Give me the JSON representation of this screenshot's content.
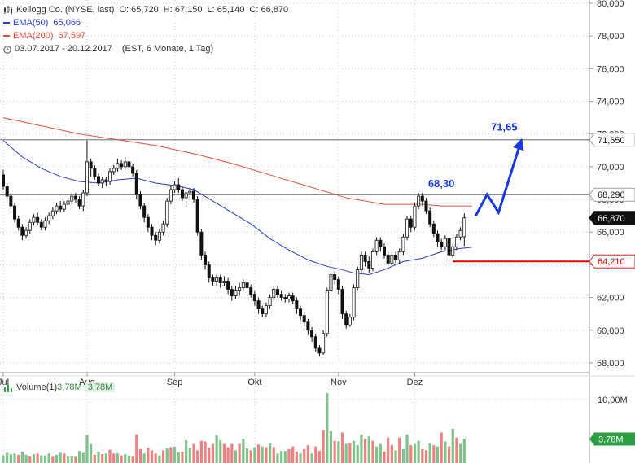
{
  "header": {
    "title": "Kellogg Co. (NYSE, last)",
    "quote": {
      "o_label": "O:",
      "o": "65,720",
      "h_label": "H:",
      "h": "67,150",
      "l_label": "L:",
      "l": "65,140",
      "c_label": "C:",
      "c": "66,870"
    },
    "ema50": {
      "label": "EMA(50)",
      "value": "65,066",
      "color": "#2a3fd1"
    },
    "ema200": {
      "label": "EMA(200)",
      "value": "67,597",
      "color": "#e8503a"
    },
    "range": "03.07.2017 - 20.12.2017",
    "range_info": "(EST, 6 Monate, 1 Tag)"
  },
  "volume_legend": {
    "label": "Volume(1)",
    "value": "3,78M",
    "badge": "3,78M"
  },
  "chart_data": {
    "type": "candlestick",
    "ylim": [
      57.4,
      80.2
    ],
    "y_ticks": [
      "80,000",
      "78,000",
      "76,000",
      "74,000",
      "72,000",
      "70,000",
      "68,000",
      "66,000",
      "64,000",
      "62,000",
      "60,000",
      "58,000"
    ],
    "y_tick_values": [
      80,
      78,
      76,
      74,
      72,
      70,
      68,
      66,
      64,
      62,
      60,
      58
    ],
    "x_labels": [
      "Jul",
      "Aug",
      "Sep",
      "Okt",
      "Nov",
      "Dez"
    ],
    "x_label_index": [
      0,
      22,
      45,
      66,
      88,
      108
    ],
    "num_days": 124,
    "candles": [
      [
        69.5,
        68.8,
        69.8,
        68.6
      ],
      [
        68.8,
        68.2,
        69.0,
        68.0
      ],
      [
        68.2,
        67.6,
        68.4,
        67.4
      ],
      [
        67.6,
        66.8,
        67.8,
        66.6
      ],
      [
        66.8,
        66.3,
        67.0,
        66.1
      ],
      [
        66.3,
        65.8,
        66.5,
        65.5
      ],
      [
        65.8,
        66.1,
        66.3,
        65.6
      ],
      [
        66.1,
        66.6,
        66.8,
        65.9
      ],
      [
        66.6,
        66.9,
        67.1,
        66.4
      ],
      [
        66.9,
        66.6,
        67.2,
        66.4
      ],
      [
        66.6,
        66.3,
        66.8,
        66.1
      ],
      [
        66.3,
        66.7,
        66.9,
        66.1
      ],
      [
        66.7,
        67.0,
        67.2,
        66.5
      ],
      [
        67.0,
        67.3,
        67.5,
        66.8
      ],
      [
        67.3,
        67.6,
        67.8,
        67.1
      ],
      [
        67.6,
        67.4,
        67.9,
        67.2
      ],
      [
        67.4,
        67.7,
        67.9,
        67.2
      ],
      [
        67.7,
        67.9,
        68.1,
        67.5
      ],
      [
        67.9,
        68.2,
        68.4,
        67.7
      ],
      [
        68.2,
        68.0,
        68.4,
        67.8
      ],
      [
        68.0,
        67.6,
        68.2,
        67.4
      ],
      [
        67.6,
        68.4,
        68.6,
        67.3
      ],
      [
        68.4,
        70.3,
        71.6,
        68.2
      ],
      [
        70.3,
        69.9,
        70.5,
        69.4
      ],
      [
        69.9,
        69.4,
        70.1,
        69.2
      ],
      [
        69.4,
        69.0,
        69.6,
        68.8
      ],
      [
        69.0,
        69.2,
        69.4,
        68.7
      ],
      [
        69.2,
        69.1,
        69.4,
        68.8
      ],
      [
        69.1,
        69.7,
        69.9,
        68.9
      ],
      [
        69.7,
        69.9,
        70.1,
        69.5
      ],
      [
        69.9,
        70.2,
        70.5,
        69.7
      ],
      [
        70.2,
        70.0,
        70.4,
        69.8
      ],
      [
        70.0,
        70.3,
        70.6,
        69.8
      ],
      [
        70.3,
        70.0,
        70.5,
        69.8
      ],
      [
        70.0,
        69.6,
        70.2,
        69.4
      ],
      [
        69.6,
        68.3,
        69.8,
        68.0
      ],
      [
        68.3,
        67.6,
        68.5,
        67.4
      ],
      [
        67.6,
        66.9,
        67.8,
        66.6
      ],
      [
        66.9,
        66.3,
        67.1,
        66.0
      ],
      [
        66.3,
        65.8,
        66.5,
        65.5
      ],
      [
        65.8,
        65.5,
        66.0,
        65.2
      ],
      [
        65.5,
        66.0,
        66.2,
        65.3
      ],
      [
        66.0,
        66.5,
        66.7,
        65.8
      ],
      [
        66.5,
        67.9,
        68.1,
        66.3
      ],
      [
        67.9,
        68.6,
        68.8,
        67.7
      ],
      [
        68.6,
        68.9,
        69.1,
        68.4
      ],
      [
        68.9,
        68.6,
        69.3,
        68.4
      ],
      [
        68.6,
        68.1,
        68.8,
        67.9
      ],
      [
        68.1,
        68.4,
        68.6,
        67.5
      ],
      [
        68.4,
        68.5,
        68.7,
        68.1
      ],
      [
        68.5,
        68.0,
        68.7,
        67.8
      ],
      [
        68.0,
        66.0,
        68.2,
        65.8
      ],
      [
        66.0,
        64.6,
        66.2,
        64.3
      ],
      [
        64.6,
        64.0,
        64.8,
        63.7
      ],
      [
        64.0,
        63.2,
        64.2,
        62.9
      ],
      [
        63.2,
        63.0,
        63.4,
        62.7
      ],
      [
        63.0,
        63.2,
        63.4,
        62.7
      ],
      [
        63.2,
        62.9,
        63.4,
        62.6
      ],
      [
        62.9,
        63.0,
        63.3,
        62.7
      ],
      [
        63.0,
        62.5,
        63.2,
        62.2
      ],
      [
        62.5,
        62.1,
        62.7,
        61.8
      ],
      [
        62.1,
        62.4,
        62.7,
        61.9
      ],
      [
        62.4,
        62.6,
        62.9,
        62.1
      ],
      [
        62.6,
        62.9,
        63.1,
        62.4
      ],
      [
        62.9,
        62.6,
        63.1,
        62.3
      ],
      [
        62.6,
        62.2,
        62.8,
        62.0
      ],
      [
        62.2,
        61.8,
        62.4,
        61.5
      ],
      [
        61.8,
        61.3,
        62.0,
        61.0
      ],
      [
        61.3,
        61.0,
        61.5,
        60.8
      ],
      [
        61.0,
        61.5,
        61.7,
        60.8
      ],
      [
        61.5,
        62.0,
        62.2,
        61.3
      ],
      [
        62.0,
        62.5,
        62.7,
        61.8
      ],
      [
        62.5,
        62.2,
        62.7,
        62.0
      ],
      [
        62.2,
        62.0,
        62.4,
        61.8
      ],
      [
        62.0,
        61.9,
        62.2,
        61.7
      ],
      [
        61.9,
        62.1,
        62.3,
        61.7
      ],
      [
        62.1,
        61.8,
        62.3,
        61.6
      ],
      [
        61.8,
        61.3,
        62.0,
        61.0
      ],
      [
        61.3,
        60.9,
        61.5,
        60.6
      ],
      [
        60.9,
        60.5,
        61.1,
        60.2
      ],
      [
        60.5,
        60.0,
        60.7,
        59.7
      ],
      [
        60.0,
        59.6,
        60.2,
        59.3
      ],
      [
        59.6,
        58.9,
        59.8,
        58.7
      ],
      [
        58.9,
        58.6,
        59.1,
        58.4
      ],
      [
        58.6,
        59.8,
        60.0,
        58.5
      ],
      [
        59.8,
        62.4,
        62.6,
        59.6
      ],
      [
        62.4,
        63.4,
        63.6,
        62.1
      ],
      [
        63.4,
        63.1,
        63.6,
        62.8
      ],
      [
        63.1,
        62.5,
        63.3,
        62.2
      ],
      [
        62.5,
        61.0,
        62.7,
        60.7
      ],
      [
        61.0,
        60.3,
        61.2,
        60.1
      ],
      [
        60.3,
        60.8,
        61.0,
        60.2
      ],
      [
        60.8,
        62.6,
        62.8,
        60.6
      ],
      [
        62.6,
        63.7,
        63.9,
        62.4
      ],
      [
        63.7,
        64.6,
        64.8,
        63.5
      ],
      [
        64.6,
        64.2,
        64.8,
        63.9
      ],
      [
        64.2,
        63.8,
        64.5,
        63.5
      ],
      [
        63.8,
        64.8,
        65.0,
        63.6
      ],
      [
        64.8,
        65.5,
        65.7,
        64.6
      ],
      [
        65.5,
        65.1,
        65.7,
        64.8
      ],
      [
        65.1,
        64.6,
        65.3,
        64.4
      ],
      [
        64.6,
        64.1,
        64.8,
        63.9
      ],
      [
        64.1,
        64.6,
        64.8,
        63.9
      ],
      [
        64.6,
        64.3,
        64.8,
        64.1
      ],
      [
        64.3,
        64.8,
        65.0,
        64.1
      ],
      [
        64.8,
        65.7,
        65.9,
        64.6
      ],
      [
        65.7,
        66.8,
        67.0,
        65.5
      ],
      [
        66.8,
        66.3,
        67.0,
        66.0
      ],
      [
        66.3,
        67.6,
        67.8,
        66.1
      ],
      [
        67.6,
        68.2,
        68.4,
        67.4
      ],
      [
        68.2,
        67.9,
        68.4,
        67.6
      ],
      [
        67.9,
        67.3,
        68.1,
        67.1
      ],
      [
        67.3,
        66.5,
        67.5,
        66.3
      ],
      [
        66.5,
        65.9,
        66.7,
        65.7
      ],
      [
        65.9,
        65.4,
        66.1,
        65.1
      ],
      [
        65.4,
        65.1,
        65.6,
        64.9
      ],
      [
        65.1,
        65.6,
        65.8,
        64.9
      ],
      [
        65.6,
        64.6,
        65.8,
        64.2
      ],
      [
        64.6,
        65.1,
        65.3,
        64.4
      ],
      [
        65.1,
        65.7,
        65.9,
        64.9
      ],
      [
        65.7,
        66.1,
        66.3,
        65.5
      ],
      [
        65.72,
        66.87,
        67.15,
        65.14
      ]
    ],
    "ema50": [
      [
        0,
        71.6
      ],
      [
        5,
        70.6
      ],
      [
        10,
        69.9
      ],
      [
        15,
        69.4
      ],
      [
        20,
        69.1
      ],
      [
        25,
        69.0
      ],
      [
        30,
        69.2
      ],
      [
        35,
        69.3
      ],
      [
        40,
        69.0
      ],
      [
        45,
        68.85
      ],
      [
        50,
        68.6
      ],
      [
        55,
        67.9
      ],
      [
        60,
        67.2
      ],
      [
        65,
        66.5
      ],
      [
        70,
        65.6
      ],
      [
        75,
        64.9
      ],
      [
        80,
        64.3
      ],
      [
        85,
        63.9
      ],
      [
        89,
        63.7
      ],
      [
        92,
        63.5
      ],
      [
        96,
        63.4
      ],
      [
        100,
        63.7
      ],
      [
        105,
        64.2
      ],
      [
        110,
        64.4
      ],
      [
        115,
        64.8
      ],
      [
        120,
        65.0
      ],
      [
        123,
        65.07
      ]
    ],
    "ema200": [
      [
        0,
        73.0
      ],
      [
        10,
        72.5
      ],
      [
        20,
        72.0
      ],
      [
        30,
        71.65
      ],
      [
        40,
        71.3
      ],
      [
        50,
        70.8
      ],
      [
        60,
        70.2
      ],
      [
        70,
        69.5
      ],
      [
        80,
        68.8
      ],
      [
        90,
        68.1
      ],
      [
        100,
        67.7
      ],
      [
        110,
        67.7
      ],
      [
        115,
        67.6
      ],
      [
        123,
        67.6
      ]
    ],
    "volume_ylim": [
      0,
      13.7
    ],
    "volume_ticks": [
      "10,00M"
    ],
    "volume_tick_values": [
      10
    ],
    "volume": [
      [
        1.2,
        1
      ],
      [
        1.6,
        1
      ],
      [
        1.4,
        1
      ],
      [
        1.5,
        1
      ],
      [
        1.3,
        0
      ],
      [
        1.8,
        1
      ],
      [
        1.3,
        1
      ],
      [
        1.0,
        0
      ],
      [
        1.4,
        1
      ],
      [
        1.5,
        0
      ],
      [
        1.2,
        1
      ],
      [
        1.2,
        1
      ],
      [
        1.5,
        1
      ],
      [
        1.0,
        0
      ],
      [
        1.3,
        1
      ],
      [
        1.6,
        1
      ],
      [
        1.5,
        0
      ],
      [
        1.0,
        1
      ],
      [
        1.1,
        1
      ],
      [
        1.0,
        0
      ],
      [
        1.9,
        1
      ],
      [
        1.6,
        1
      ],
      [
        4.4,
        1
      ],
      [
        3.0,
        1
      ],
      [
        1.3,
        0
      ],
      [
        1.8,
        1
      ],
      [
        1.4,
        0
      ],
      [
        1.5,
        1
      ],
      [
        2.1,
        0
      ],
      [
        1.5,
        0
      ],
      [
        1.5,
        1
      ],
      [
        1.2,
        0
      ],
      [
        1.4,
        1
      ],
      [
        1.2,
        1
      ],
      [
        1.0,
        0
      ],
      [
        4.5,
        0
      ],
      [
        2.2,
        0
      ],
      [
        1.5,
        1
      ],
      [
        2.4,
        0
      ],
      [
        2.0,
        0
      ],
      [
        1.5,
        0
      ],
      [
        1.2,
        1
      ],
      [
        2.0,
        0
      ],
      [
        2.3,
        1
      ],
      [
        2.5,
        0
      ],
      [
        2.6,
        1
      ],
      [
        1.7,
        1
      ],
      [
        1.8,
        0
      ],
      [
        3.6,
        1
      ],
      [
        2.4,
        1
      ],
      [
        3.0,
        0
      ],
      [
        2.0,
        0
      ],
      [
        3.5,
        0
      ],
      [
        3.4,
        0
      ],
      [
        2.4,
        0
      ],
      [
        3.0,
        0
      ],
      [
        4.4,
        1
      ],
      [
        3.6,
        1
      ],
      [
        3.0,
        0
      ],
      [
        2.5,
        0
      ],
      [
        3.0,
        0
      ],
      [
        2.0,
        1
      ],
      [
        3.0,
        0
      ],
      [
        3.8,
        1
      ],
      [
        2.3,
        1
      ],
      [
        2.0,
        0
      ],
      [
        2.5,
        1
      ],
      [
        2.9,
        0
      ],
      [
        2.6,
        1
      ],
      [
        2.5,
        0
      ],
      [
        3.1,
        1
      ],
      [
        2.5,
        0
      ],
      [
        1.5,
        1
      ],
      [
        1.9,
        1
      ],
      [
        1.9,
        1
      ],
      [
        2.2,
        0
      ],
      [
        2.6,
        0
      ],
      [
        1.8,
        0
      ],
      [
        1.5,
        1
      ],
      [
        2.2,
        0
      ],
      [
        2.8,
        0
      ],
      [
        1.5,
        1
      ],
      [
        2.6,
        0
      ],
      [
        1.9,
        0
      ],
      [
        5.2,
        0
      ],
      [
        11.0,
        1
      ],
      [
        5.0,
        1
      ],
      [
        3.5,
        0
      ],
      [
        3.4,
        1
      ],
      [
        4.8,
        0
      ],
      [
        3.0,
        1
      ],
      [
        3.2,
        0
      ],
      [
        3.5,
        1
      ],
      [
        2.8,
        1
      ],
      [
        4.5,
        1
      ],
      [
        3.8,
        0
      ],
      [
        4.2,
        1
      ],
      [
        3.5,
        0
      ],
      [
        2.6,
        1
      ],
      [
        3.0,
        1
      ],
      [
        1.8,
        0
      ],
      [
        4.0,
        0
      ],
      [
        2.8,
        0
      ],
      [
        2.0,
        1
      ],
      [
        4.0,
        0
      ],
      [
        2.2,
        1
      ],
      [
        4.5,
        1
      ],
      [
        2.8,
        0
      ],
      [
        3.0,
        1
      ],
      [
        3.5,
        1
      ],
      [
        2.2,
        0
      ],
      [
        2.0,
        0
      ],
      [
        3.1,
        1
      ],
      [
        2.8,
        0
      ],
      [
        2.6,
        1
      ],
      [
        4.8,
        0
      ],
      [
        3.4,
        1
      ],
      [
        2.6,
        0
      ],
      [
        5.4,
        1
      ],
      [
        4.0,
        0
      ],
      [
        3.0,
        1
      ],
      [
        3.78,
        1
      ]
    ],
    "annotations": [
      {
        "label": "71,65",
        "value": 71.65
      },
      {
        "label": "68,30",
        "value": 68.3
      }
    ],
    "horizontal_levels": [
      {
        "value": 71.65,
        "label": "71,650",
        "color": "#666666"
      },
      {
        "value": 68.29,
        "label": "68,290",
        "color": "#666666"
      },
      {
        "value": 64.21,
        "label": "64,210",
        "color": "#e60000"
      }
    ],
    "last_price": {
      "value": 66.87,
      "label": "66,870"
    },
    "forecast_path": [
      [
        124,
        67.0
      ],
      [
        127,
        68.3
      ],
      [
        130,
        67.2
      ],
      [
        136,
        71.65
      ]
    ],
    "colors": {
      "up": "#2e9e44",
      "down": "#d11f1f",
      "candle_up": "#ffffff",
      "candle_down": "#111111",
      "arrow": "#1838e0",
      "vol_up": "#7fc28a",
      "vol_down": "#ee8080"
    }
  }
}
